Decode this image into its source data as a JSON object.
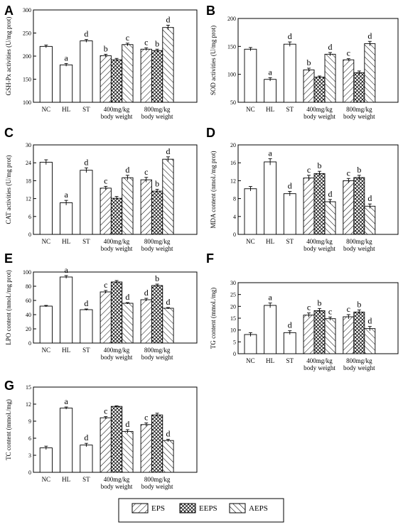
{
  "legend": {
    "items": [
      {
        "label": "EPS",
        "pattern": "eps"
      },
      {
        "label": "EEPS",
        "pattern": "eeps"
      },
      {
        "label": "AEPS",
        "pattern": "aeps"
      }
    ]
  },
  "chart_data": [
    {
      "type": "bar",
      "letter": "A",
      "ylabel": "GSH-Px activities (U/mg prot)",
      "ylim": [
        100,
        300
      ],
      "yticks": [
        100,
        150,
        200,
        250,
        300
      ],
      "groups": [
        {
          "label": [
            "NC"
          ],
          "bars": [
            {
              "p": "plain",
              "v": 221,
              "e": 3,
              "sig": ""
            }
          ]
        },
        {
          "label": [
            "HL"
          ],
          "bars": [
            {
              "p": "plain",
              "v": 181,
              "e": 3,
              "sig": "a"
            }
          ]
        },
        {
          "label": [
            "ST"
          ],
          "bars": [
            {
              "p": "plain",
              "v": 233,
              "e": 3,
              "sig": "d"
            }
          ]
        },
        {
          "label": [
            "400mg/kg",
            "body weight"
          ],
          "bars": [
            {
              "p": "eps",
              "v": 201,
              "e": 3,
              "sig": "b"
            },
            {
              "p": "eeps",
              "v": 192,
              "e": 3,
              "sig": ""
            },
            {
              "p": "aeps",
              "v": 225,
              "e": 3,
              "sig": "c"
            }
          ]
        },
        {
          "label": [
            "800mg/kg",
            "body weight"
          ],
          "bars": [
            {
              "p": "eps",
              "v": 215,
              "e": 3,
              "sig": "c"
            },
            {
              "p": "eeps",
              "v": 212,
              "e": 3,
              "sig": "b"
            },
            {
              "p": "aeps",
              "v": 262,
              "e": 5,
              "sig": "d"
            }
          ]
        }
      ]
    },
    {
      "type": "bar",
      "letter": "B",
      "ylabel": "SOD activities (U/mg prot)",
      "ylim": [
        50,
        200
      ],
      "yticks": [
        50,
        100,
        150,
        200
      ],
      "groups": [
        {
          "label": [
            "NC"
          ],
          "bars": [
            {
              "p": "plain",
              "v": 145,
              "e": 3,
              "sig": ""
            }
          ]
        },
        {
          "label": [
            "HL"
          ],
          "bars": [
            {
              "p": "plain",
              "v": 91,
              "e": 3,
              "sig": "a"
            }
          ]
        },
        {
          "label": [
            "ST"
          ],
          "bars": [
            {
              "p": "plain",
              "v": 154,
              "e": 4,
              "sig": "d"
            }
          ]
        },
        {
          "label": [
            "400mg/kg",
            "body weight"
          ],
          "bars": [
            {
              "p": "eps",
              "v": 108,
              "e": 3,
              "sig": "b"
            },
            {
              "p": "eeps",
              "v": 95,
              "e": 2,
              "sig": ""
            },
            {
              "p": "aeps",
              "v": 136,
              "e": 3,
              "sig": "d"
            }
          ]
        },
        {
          "label": [
            "800mg/kg",
            "body weight"
          ],
          "bars": [
            {
              "p": "eps",
              "v": 126,
              "e": 2,
              "sig": "c"
            },
            {
              "p": "eeps",
              "v": 103,
              "e": 3,
              "sig": ""
            },
            {
              "p": "aeps",
              "v": 155,
              "e": 4,
              "sig": "d"
            }
          ]
        }
      ]
    },
    {
      "type": "bar",
      "letter": "C",
      "ylabel": "CAT activities (U/mg prot)",
      "ylim": [
        0,
        30
      ],
      "yticks": [
        0,
        6,
        12,
        18,
        24,
        30
      ],
      "groups": [
        {
          "label": [
            "NC"
          ],
          "bars": [
            {
              "p": "plain",
              "v": 24.2,
              "e": 0.8,
              "sig": ""
            }
          ]
        },
        {
          "label": [
            "HL"
          ],
          "bars": [
            {
              "p": "plain",
              "v": 10.6,
              "e": 0.8,
              "sig": "a"
            }
          ]
        },
        {
          "label": [
            "ST"
          ],
          "bars": [
            {
              "p": "plain",
              "v": 21.5,
              "e": 0.8,
              "sig": "d"
            }
          ]
        },
        {
          "label": [
            "400mg/kg",
            "body weight"
          ],
          "bars": [
            {
              "p": "eps",
              "v": 15.5,
              "e": 0.6,
              "sig": "c"
            },
            {
              "p": "eeps",
              "v": 12.1,
              "e": 0.6,
              "sig": ""
            },
            {
              "p": "aeps",
              "v": 19.0,
              "e": 0.8,
              "sig": "d"
            }
          ]
        },
        {
          "label": [
            "800mg/kg",
            "body weight"
          ],
          "bars": [
            {
              "p": "eps",
              "v": 18.3,
              "e": 0.8,
              "sig": "c"
            },
            {
              "p": "eeps",
              "v": 14.5,
              "e": 0.6,
              "sig": "b"
            },
            {
              "p": "aeps",
              "v": 25.2,
              "e": 0.8,
              "sig": "d"
            }
          ]
        }
      ]
    },
    {
      "type": "bar",
      "letter": "D",
      "ylabel": "MDA content (nmol./mg prot)",
      "ylim": [
        0,
        20
      ],
      "yticks": [
        0,
        4,
        8,
        12,
        16,
        20
      ],
      "groups": [
        {
          "label": [
            "NC"
          ],
          "bars": [
            {
              "p": "plain",
              "v": 10.2,
              "e": 0.5,
              "sig": ""
            }
          ]
        },
        {
          "label": [
            "HL"
          ],
          "bars": [
            {
              "p": "plain",
              "v": 16.2,
              "e": 0.7,
              "sig": "a"
            }
          ]
        },
        {
          "label": [
            "ST"
          ],
          "bars": [
            {
              "p": "plain",
              "v": 9.1,
              "e": 0.5,
              "sig": "d"
            }
          ]
        },
        {
          "label": [
            "400mg/kg",
            "body weight"
          ],
          "bars": [
            {
              "p": "eps",
              "v": 12.6,
              "e": 0.6,
              "sig": "c"
            },
            {
              "p": "eeps",
              "v": 13.6,
              "e": 0.5,
              "sig": "b"
            },
            {
              "p": "aeps",
              "v": 7.3,
              "e": 0.5,
              "sig": "d"
            }
          ]
        },
        {
          "label": [
            "800mg/kg",
            "body weight"
          ],
          "bars": [
            {
              "p": "eps",
              "v": 12.0,
              "e": 0.5,
              "sig": "c"
            },
            {
              "p": "eeps",
              "v": 12.7,
              "e": 0.5,
              "sig": "b"
            },
            {
              "p": "aeps",
              "v": 6.3,
              "e": 0.5,
              "sig": "d"
            }
          ]
        }
      ]
    },
    {
      "type": "bar",
      "letter": "E",
      "ylabel": "LPO content (nmol./mg prot)",
      "ylim": [
        0,
        100
      ],
      "yticks": [
        0,
        20,
        40,
        60,
        80,
        100
      ],
      "groups": [
        {
          "label": [
            "NC"
          ],
          "bars": [
            {
              "p": "plain",
              "v": 52,
              "e": 1,
              "sig": ""
            }
          ]
        },
        {
          "label": [
            "HL"
          ],
          "bars": [
            {
              "p": "plain",
              "v": 93,
              "e": 2,
              "sig": "a"
            }
          ]
        },
        {
          "label": [
            "ST"
          ],
          "bars": [
            {
              "p": "plain",
              "v": 47,
              "e": 1,
              "sig": "d"
            }
          ]
        },
        {
          "label": [
            "400mg/kg",
            "body weight"
          ],
          "bars": [
            {
              "p": "eps",
              "v": 72,
              "e": 2,
              "sig": "c"
            },
            {
              "p": "eeps",
              "v": 86,
              "e": 2,
              "sig": ""
            },
            {
              "p": "aeps",
              "v": 56,
              "e": 1,
              "sig": "d"
            }
          ]
        },
        {
          "label": [
            "800mg/kg",
            "body weight"
          ],
          "bars": [
            {
              "p": "eps",
              "v": 61,
              "e": 2,
              "sig": "d"
            },
            {
              "p": "eeps",
              "v": 81,
              "e": 2,
              "sig": "b"
            },
            {
              "p": "aeps",
              "v": 49,
              "e": 1,
              "sig": "d"
            }
          ]
        }
      ]
    },
    {
      "type": "bar",
      "letter": "F",
      "ylabel": "TG content (mmol./mg)",
      "ylim": [
        0,
        30
      ],
      "yticks": [
        0,
        5,
        10,
        15,
        20,
        25,
        30
      ],
      "groups": [
        {
          "label": [
            "NC"
          ],
          "bars": [
            {
              "p": "plain",
              "v": 8.1,
              "e": 0.8,
              "sig": ""
            }
          ]
        },
        {
          "label": [
            "HL"
          ],
          "bars": [
            {
              "p": "plain",
              "v": 20.4,
              "e": 1.0,
              "sig": "a"
            }
          ]
        },
        {
          "label": [
            "ST"
          ],
          "bars": [
            {
              "p": "plain",
              "v": 8.9,
              "e": 0.8,
              "sig": "d"
            }
          ]
        },
        {
          "label": [
            "400mg/kg",
            "body weight"
          ],
          "bars": [
            {
              "p": "eps",
              "v": 16.3,
              "e": 0.9,
              "sig": "c"
            },
            {
              "p": "eeps",
              "v": 18.2,
              "e": 0.9,
              "sig": "b"
            },
            {
              "p": "aeps",
              "v": 14.8,
              "e": 0.7,
              "sig": "c"
            }
          ]
        },
        {
          "label": [
            "800mg/kg",
            "body weight"
          ],
          "bars": [
            {
              "p": "eps",
              "v": 15.6,
              "e": 0.9,
              "sig": "c"
            },
            {
              "p": "eeps",
              "v": 17.6,
              "e": 0.9,
              "sig": "b"
            },
            {
              "p": "aeps",
              "v": 10.6,
              "e": 0.9,
              "sig": "d"
            }
          ]
        }
      ]
    },
    {
      "type": "bar",
      "letter": "G",
      "ylabel": "TC content (mmol./mg)",
      "ylim": [
        0,
        15
      ],
      "yticks": [
        0,
        3,
        6,
        9,
        12,
        15
      ],
      "groups": [
        {
          "label": [
            "NC"
          ],
          "bars": [
            {
              "p": "plain",
              "v": 4.3,
              "e": 0.3,
              "sig": ""
            }
          ]
        },
        {
          "label": [
            "HL"
          ],
          "bars": [
            {
              "p": "plain",
              "v": 11.3,
              "e": 0.2,
              "sig": "a"
            }
          ]
        },
        {
          "label": [
            "ST"
          ],
          "bars": [
            {
              "p": "plain",
              "v": 4.8,
              "e": 0.3,
              "sig": "d"
            }
          ]
        },
        {
          "label": [
            "400mg/kg",
            "body weight"
          ],
          "bars": [
            {
              "p": "eps",
              "v": 9.6,
              "e": 0.2,
              "sig": "c"
            },
            {
              "p": "eeps",
              "v": 11.6,
              "e": 0.1,
              "sig": ""
            },
            {
              "p": "aeps",
              "v": 7.2,
              "e": 0.3,
              "sig": "d"
            }
          ]
        },
        {
          "label": [
            "800mg/kg",
            "body weight"
          ],
          "bars": [
            {
              "p": "eps",
              "v": 8.4,
              "e": 0.3,
              "sig": "c"
            },
            {
              "p": "eeps",
              "v": 10.1,
              "e": 0.3,
              "sig": ""
            },
            {
              "p": "aeps",
              "v": 5.6,
              "e": 0.2,
              "sig": "d"
            }
          ]
        }
      ]
    }
  ]
}
